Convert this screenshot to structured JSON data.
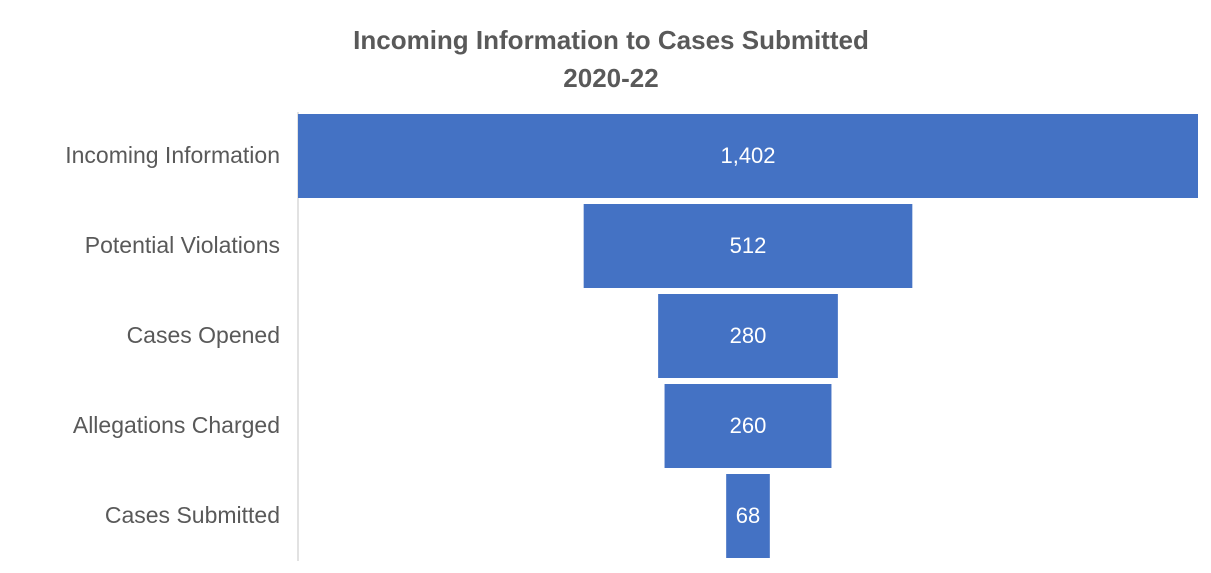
{
  "chart_data": {
    "type": "funnel",
    "title": "Incoming Information to Cases Submitted",
    "subtitle": "2020-22",
    "categories": [
      "Incoming Information",
      "Potential Violations",
      "Cases Opened",
      "Allegations Charged",
      "Cases Submitted"
    ],
    "values": [
      1402,
      512,
      280,
      260,
      68
    ],
    "value_labels": [
      "1,402",
      "512",
      "280",
      "260",
      "68"
    ],
    "color": "#4472c4"
  }
}
